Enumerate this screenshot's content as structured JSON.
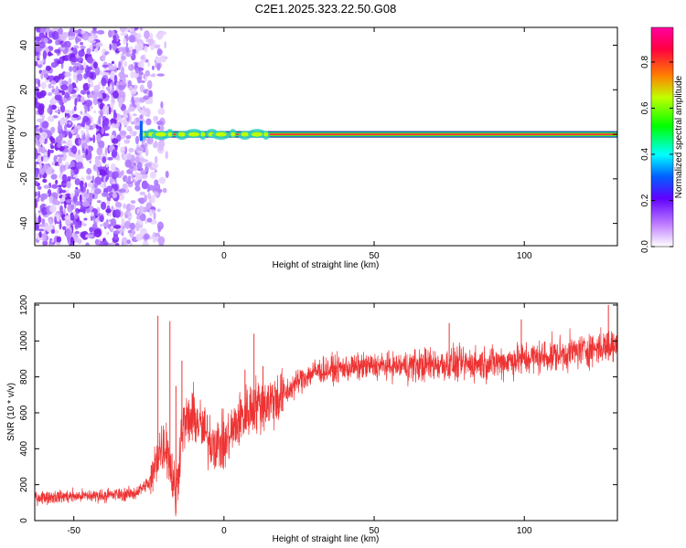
{
  "title": "C2E1.2025.323.22.50.G08",
  "chart_data": [
    {
      "type": "heatmap",
      "xlabel": "Height of straight line (km)",
      "ylabel": "Frequency (Hz)",
      "xlim": [
        -63,
        131
      ],
      "ylim": [
        -50,
        48
      ],
      "x_ticks": [
        -50,
        0,
        50,
        100
      ],
      "y_ticks": [
        -40,
        -20,
        0,
        20,
        40
      ],
      "tone_frequency": 0,
      "tone_start_height": -28,
      "noise_region_end": -28,
      "colorbar": {
        "label": "Normalized spectral amplitude",
        "range": [
          0.0,
          0.95
        ],
        "ticks": [
          0.0,
          0.2,
          0.4,
          0.6,
          0.8
        ],
        "tick_labels": [
          "0.0",
          "0.2",
          "0.4",
          "0.6",
          "0.8"
        ],
        "colormap": [
          "#ffffff",
          "#8000ff",
          "#0040ff",
          "#00ffff",
          "#00ff00",
          "#ffff00",
          "#ff8000",
          "#ff0040",
          "#ff00a0"
        ]
      },
      "grid": false
    },
    {
      "type": "line",
      "xlabel": "Height of straight line (km)",
      "ylabel": "SNR (10 * v/v)",
      "xlim": [
        -63,
        131
      ],
      "ylim": [
        0,
        1210
      ],
      "x_ticks": [
        -50,
        0,
        50,
        100
      ],
      "y_ticks": [
        0,
        200,
        400,
        600,
        800,
        1000,
        1200
      ],
      "color": "#ee3333",
      "trend": [
        {
          "x": -63,
          "y": 130
        },
        {
          "x": -40,
          "y": 140
        },
        {
          "x": -30,
          "y": 150
        },
        {
          "x": -24,
          "y": 220
        },
        {
          "x": -22,
          "y": 380
        },
        {
          "x": -19,
          "y": 430
        },
        {
          "x": -16,
          "y": 120
        },
        {
          "x": -14,
          "y": 520
        },
        {
          "x": -10,
          "y": 580
        },
        {
          "x": -5,
          "y": 450
        },
        {
          "x": 0,
          "y": 420
        },
        {
          "x": 5,
          "y": 560
        },
        {
          "x": 10,
          "y": 640
        },
        {
          "x": 15,
          "y": 660
        },
        {
          "x": 20,
          "y": 700
        },
        {
          "x": 25,
          "y": 780
        },
        {
          "x": 30,
          "y": 830
        },
        {
          "x": 40,
          "y": 850
        },
        {
          "x": 50,
          "y": 860
        },
        {
          "x": 60,
          "y": 860
        },
        {
          "x": 70,
          "y": 870
        },
        {
          "x": 80,
          "y": 870
        },
        {
          "x": 90,
          "y": 880
        },
        {
          "x": 100,
          "y": 900
        },
        {
          "x": 110,
          "y": 920
        },
        {
          "x": 120,
          "y": 950
        },
        {
          "x": 131,
          "y": 980
        }
      ],
      "spikes": [
        {
          "x": -22,
          "y": 1140
        },
        {
          "x": -18,
          "y": 1110
        },
        {
          "x": -16,
          "y": 750
        },
        {
          "x": -14,
          "y": 890
        },
        {
          "x": 7,
          "y": 840
        },
        {
          "x": 10,
          "y": 1040
        },
        {
          "x": 13,
          "y": 860
        },
        {
          "x": 75,
          "y": 1100
        },
        {
          "x": 99,
          "y": 1120
        },
        {
          "x": 128,
          "y": 1200
        }
      ],
      "grid": false
    }
  ]
}
